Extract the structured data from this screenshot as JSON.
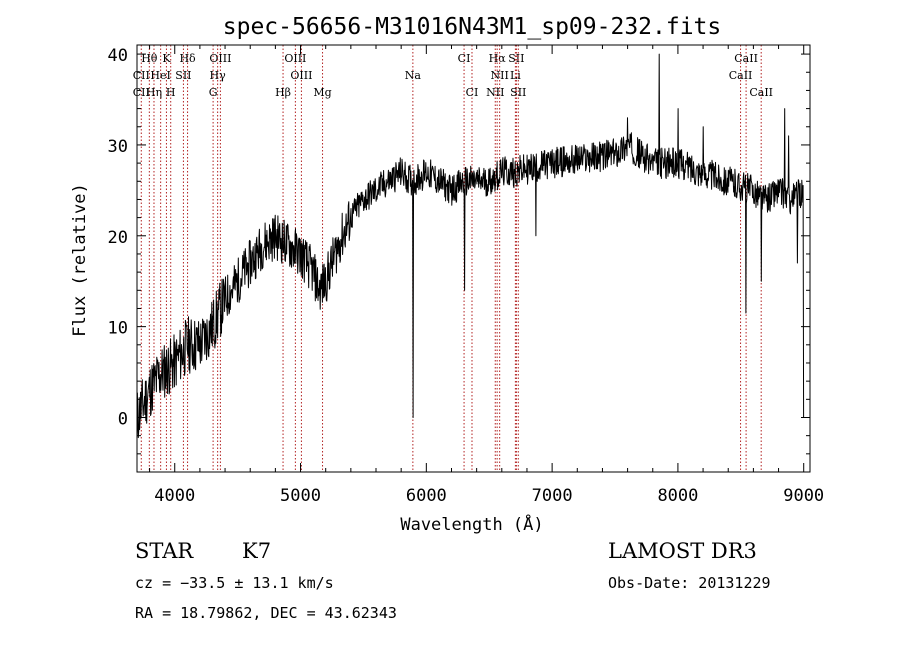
{
  "chart_data": {
    "type": "line",
    "title": "spec-56656-M31016N43M1_sp09-232.fits",
    "xlabel": "Wavelength (Å)",
    "ylabel": "Flux (relative)",
    "xlim": [
      3700,
      9050
    ],
    "ylim": [
      -6,
      41
    ],
    "xticks": [
      4000,
      5000,
      6000,
      7000,
      8000,
      9000
    ],
    "xtick_labels": [
      "4000",
      "5000",
      "6000",
      "7000",
      "8000",
      "9000"
    ],
    "yticks": [
      0,
      10,
      20,
      30,
      40
    ],
    "ytick_labels": [
      "0",
      "10",
      "20",
      "30",
      "40"
    ],
    "spectrum_anchor_points": {
      "wavelength": [
        3700,
        3800,
        3900,
        4000,
        4100,
        4200,
        4300,
        4400,
        4500,
        4600,
        4700,
        4800,
        4900,
        5000,
        5100,
        5150,
        5200,
        5300,
        5400,
        5500,
        5600,
        5700,
        5800,
        5880,
        5900,
        6000,
        6100,
        6200,
        6300,
        6500,
        6600,
        6700,
        7000,
        7500,
        7600,
        7800,
        8000,
        8200,
        8400,
        8600,
        8700,
        8800,
        8900,
        9000
      ],
      "flux": [
        0,
        3,
        5,
        6,
        8,
        8,
        10,
        13,
        15,
        17,
        19,
        20,
        19,
        18,
        16,
        14,
        15,
        19,
        22,
        24,
        25,
        26,
        27,
        26,
        26,
        27,
        26,
        25,
        26,
        26,
        27,
        27,
        28,
        29,
        30,
        28,
        28,
        27,
        26,
        25,
        24,
        25,
        24,
        25
      ]
    },
    "absorption_features": [
      {
        "wavelength": 5893,
        "flux": 0
      },
      {
        "wavelength": 6305,
        "flux": 14
      },
      {
        "wavelength": 6870,
        "flux": 20
      },
      {
        "wavelength": 8542,
        "flux": 11.5
      },
      {
        "wavelength": 8662,
        "flux": 15
      },
      {
        "wavelength": 8950,
        "flux": 17
      },
      {
        "wavelength": 9000,
        "flux": 0
      }
    ],
    "emission_spikes": [
      {
        "wavelength": 7600,
        "flux": 33
      },
      {
        "wavelength": 7850,
        "flux": 40
      },
      {
        "wavelength": 8000,
        "flux": 34
      },
      {
        "wavelength": 8200,
        "flux": 32
      },
      {
        "wavelength": 8850,
        "flux": 34
      },
      {
        "wavelength": 8880,
        "flux": 31
      }
    ],
    "line_markers": [
      {
        "label": "Hθ",
        "wavelength": 3798,
        "row": 1
      },
      {
        "label": "K",
        "wavelength": 3934,
        "row": 1
      },
      {
        "label": "Hδ",
        "wavelength": 4102,
        "row": 1
      },
      {
        "label": "OIII",
        "wavelength": 4363,
        "row": 1
      },
      {
        "label": "OIII",
        "wavelength": 4959,
        "row": 1
      },
      {
        "label": "CI",
        "wavelength": 6300,
        "row": 1
      },
      {
        "label": "Hα",
        "wavelength": 6563,
        "row": 1
      },
      {
        "label": "SII",
        "wavelength": 6716,
        "row": 1
      },
      {
        "label": "CaII",
        "wavelength": 8542,
        "row": 1
      },
      {
        "label": "CII",
        "wavelength": 3734,
        "row": 2
      },
      {
        "label": "HeI",
        "wavelength": 3888,
        "row": 2
      },
      {
        "label": "SII",
        "wavelength": 4069,
        "row": 2
      },
      {
        "label": "Hγ",
        "wavelength": 4341,
        "row": 2
      },
      {
        "label": "OIII",
        "wavelength": 5007,
        "row": 2
      },
      {
        "label": "Na",
        "wavelength": 5893,
        "row": 2
      },
      {
        "label": "NII",
        "wavelength": 6583,
        "row": 2
      },
      {
        "label": "Li",
        "wavelength": 6708,
        "row": 2
      },
      {
        "label": "CaII",
        "wavelength": 8498,
        "row": 2
      },
      {
        "label": "CII",
        "wavelength": 3734,
        "row": 3
      },
      {
        "label": "Hη",
        "wavelength": 3835,
        "row": 3
      },
      {
        "label": "H",
        "wavelength": 3968,
        "row": 3
      },
      {
        "label": "G",
        "wavelength": 4305,
        "row": 3
      },
      {
        "label": "Hβ",
        "wavelength": 4861,
        "row": 3
      },
      {
        "label": "Mg",
        "wavelength": 5175,
        "row": 3
      },
      {
        "label": "CI",
        "wavelength": 6363,
        "row": 3
      },
      {
        "label": "NII",
        "wavelength": 6548,
        "row": 3
      },
      {
        "label": "SII",
        "wavelength": 6731,
        "row": 3
      },
      {
        "label": "CaII",
        "wavelength": 8662,
        "row": 3
      }
    ],
    "colors": {
      "spectrum": "#000000",
      "marker_lines": "#b22222",
      "axes": "#000000"
    }
  },
  "info": {
    "object_class": "STAR",
    "subclass": "K7",
    "survey": "LAMOST DR3",
    "redshift_line": "cz = −33.5 ± 13.1 km/s",
    "obs_date_line": "Obs-Date: 20131229",
    "coords_line": "RA =  18.79862, DEC =  43.62343"
  }
}
